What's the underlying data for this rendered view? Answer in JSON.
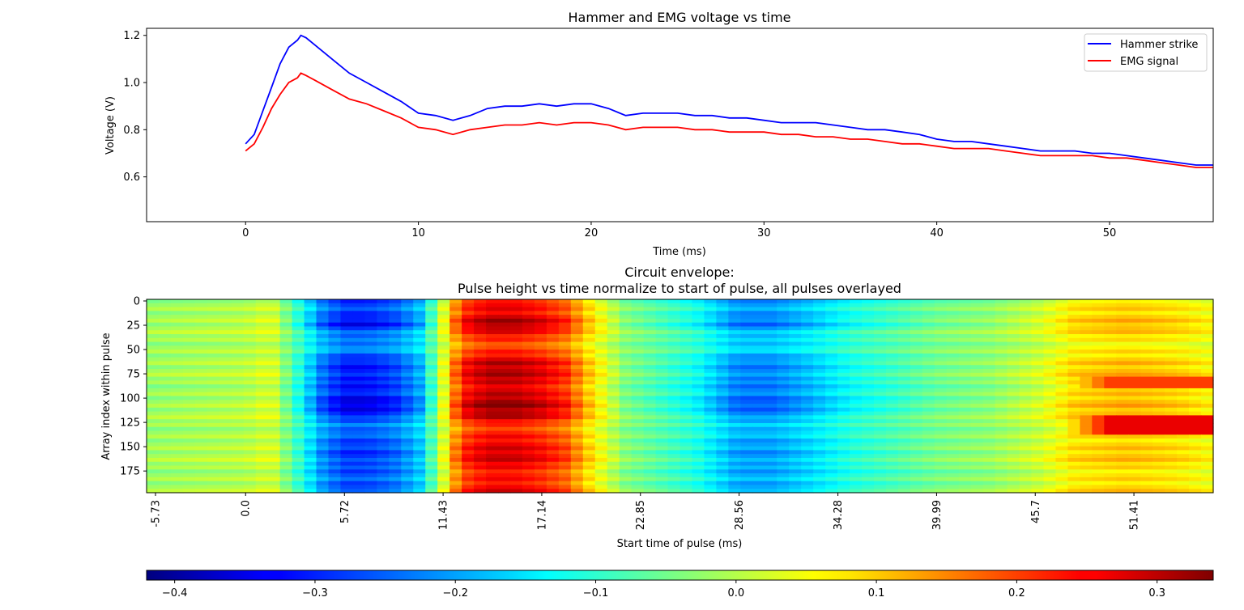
{
  "chart_data": [
    {
      "type": "line",
      "title": "Hammer and EMG voltage vs time",
      "xlabel": "Time (ms)",
      "ylabel": "Voltage (V)",
      "xlim": [
        -5.73,
        56
      ],
      "ylim": [
        0.41,
        1.23
      ],
      "xticks": [
        0,
        10,
        20,
        30,
        40,
        50
      ],
      "yticks": [
        0.6,
        0.8,
        1.0,
        1.2
      ],
      "ytick_labels": [
        "0.6",
        "0.8",
        "1.0",
        "1.2"
      ],
      "legend_position": "top-right",
      "series": [
        {
          "name": "Hammer strike",
          "color": "#0000ff",
          "x": [
            0,
            0.5,
            1,
            1.5,
            2,
            2.5,
            3,
            3.2,
            3.5,
            4,
            5,
            6,
            7,
            8,
            9,
            10,
            11,
            12,
            13,
            14,
            15,
            16,
            17,
            18,
            19,
            20,
            21,
            22,
            23,
            24,
            25,
            26,
            27,
            28,
            29,
            30,
            31,
            32,
            33,
            34,
            35,
            36,
            37,
            38,
            39,
            40,
            41,
            42,
            43,
            44,
            45,
            46,
            47,
            48,
            49,
            50,
            51,
            52,
            53,
            54,
            55,
            56
          ],
          "y": [
            0.74,
            0.78,
            0.88,
            0.98,
            1.08,
            1.15,
            1.18,
            1.2,
            1.19,
            1.16,
            1.1,
            1.04,
            1.0,
            0.96,
            0.92,
            0.87,
            0.86,
            0.84,
            0.86,
            0.89,
            0.9,
            0.9,
            0.91,
            0.9,
            0.91,
            0.91,
            0.89,
            0.86,
            0.87,
            0.87,
            0.87,
            0.86,
            0.86,
            0.85,
            0.85,
            0.84,
            0.83,
            0.83,
            0.83,
            0.82,
            0.81,
            0.8,
            0.8,
            0.79,
            0.78,
            0.76,
            0.75,
            0.75,
            0.74,
            0.73,
            0.72,
            0.71,
            0.71,
            0.71,
            0.7,
            0.7,
            0.69,
            0.68,
            0.67,
            0.66,
            0.65,
            0.65
          ]
        },
        {
          "name": "EMG signal",
          "color": "#ff0000",
          "x": [
            0,
            0.5,
            1,
            1.5,
            2,
            2.5,
            3,
            3.2,
            3.5,
            4,
            5,
            6,
            7,
            8,
            9,
            10,
            11,
            12,
            13,
            14,
            15,
            16,
            17,
            18,
            19,
            20,
            21,
            22,
            23,
            24,
            25,
            26,
            27,
            28,
            29,
            30,
            31,
            32,
            33,
            34,
            35,
            36,
            37,
            38,
            39,
            40,
            41,
            42,
            43,
            44,
            45,
            46,
            47,
            48,
            49,
            50,
            51,
            52,
            53,
            54,
            55,
            56
          ],
          "y": [
            0.71,
            0.74,
            0.81,
            0.89,
            0.95,
            1.0,
            1.02,
            1.04,
            1.03,
            1.01,
            0.97,
            0.93,
            0.91,
            0.88,
            0.85,
            0.81,
            0.8,
            0.78,
            0.8,
            0.81,
            0.82,
            0.82,
            0.83,
            0.82,
            0.83,
            0.83,
            0.82,
            0.8,
            0.81,
            0.81,
            0.81,
            0.8,
            0.8,
            0.79,
            0.79,
            0.79,
            0.78,
            0.78,
            0.77,
            0.77,
            0.76,
            0.76,
            0.75,
            0.74,
            0.74,
            0.73,
            0.72,
            0.72,
            0.72,
            0.71,
            0.7,
            0.69,
            0.69,
            0.69,
            0.69,
            0.68,
            0.68,
            0.67,
            0.66,
            0.65,
            0.64,
            0.64
          ]
        }
      ]
    },
    {
      "type": "heatmap",
      "title_line1": "Circuit envelope:",
      "title_line2": "Pulse height vs time normalize to start of pulse, all pulses overlayed",
      "xlabel": "Start time of pulse (ms)",
      "ylabel": "Array index within pulse",
      "colormap": "jet",
      "xlim": [
        -5.73,
        56
      ],
      "ylim": [
        0,
        199
      ],
      "xticks": [
        -5.73,
        0.0,
        5.72,
        11.43,
        17.14,
        22.85,
        28.56,
        34.28,
        39.99,
        45.7,
        51.41
      ],
      "xtick_labels": [
        "-5.73",
        "0.0",
        "5.72",
        "11.43",
        "17.14",
        "22.85",
        "28.56",
        "34.28",
        "39.99",
        "45.7",
        "51.41"
      ],
      "yticks": [
        0,
        25,
        50,
        75,
        100,
        125,
        150,
        175
      ],
      "ytick_labels": [
        "0",
        "25",
        "50",
        "75",
        "100",
        "125",
        "150",
        "175"
      ],
      "value_range": [
        -0.42,
        0.34
      ],
      "colorbar_ticks": [
        -0.4,
        -0.3,
        -0.2,
        -0.1,
        0.0,
        0.1,
        0.2,
        0.3
      ],
      "colorbar_tick_labels": [
        "−0.4",
        "−0.3",
        "−0.2",
        "−0.1",
        "0.0",
        "0.1",
        "0.2",
        "0.3"
      ],
      "time_profile": {
        "x": [
          -5.73,
          -3.0,
          0.0,
          1.5,
          3.0,
          4.5,
          5.72,
          7.0,
          8.5,
          10.0,
          11.0,
          12.5,
          14.0,
          15.5,
          17.0,
          18.5,
          20.0,
          22.0,
          24.0,
          26.0,
          28.5,
          30.5,
          32.5,
          35.0,
          38.0,
          40.0,
          43.0,
          46.0,
          48.0,
          51.0,
          54.0,
          56.0
        ],
        "value": [
          -0.02,
          -0.01,
          0.0,
          0.03,
          -0.1,
          -0.24,
          -0.3,
          -0.3,
          -0.27,
          -0.2,
          -0.05,
          0.22,
          0.28,
          0.28,
          0.25,
          0.2,
          0.08,
          -0.04,
          -0.08,
          -0.12,
          -0.22,
          -0.22,
          -0.18,
          -0.12,
          -0.08,
          -0.05,
          -0.03,
          0.02,
          0.08,
          0.1,
          0.08,
          0.05
        ]
      },
      "row_profile": {
        "index": [
          0,
          12,
          25,
          35,
          50,
          65,
          80,
          95,
          108,
          120,
          130,
          145,
          160,
          172,
          185,
          199
        ],
        "weight": [
          0.95,
          0.9,
          1.15,
          0.85,
          0.7,
          1.05,
          1.05,
          1.0,
          1.2,
          1.05,
          0.75,
          0.9,
          1.0,
          0.9,
          0.85,
          0.95
        ]
      },
      "late_band": {
        "x_start": 47,
        "rows": [
          [
            78,
            90,
            0.2
          ],
          [
            118,
            138,
            0.26
          ]
        ]
      }
    }
  ]
}
